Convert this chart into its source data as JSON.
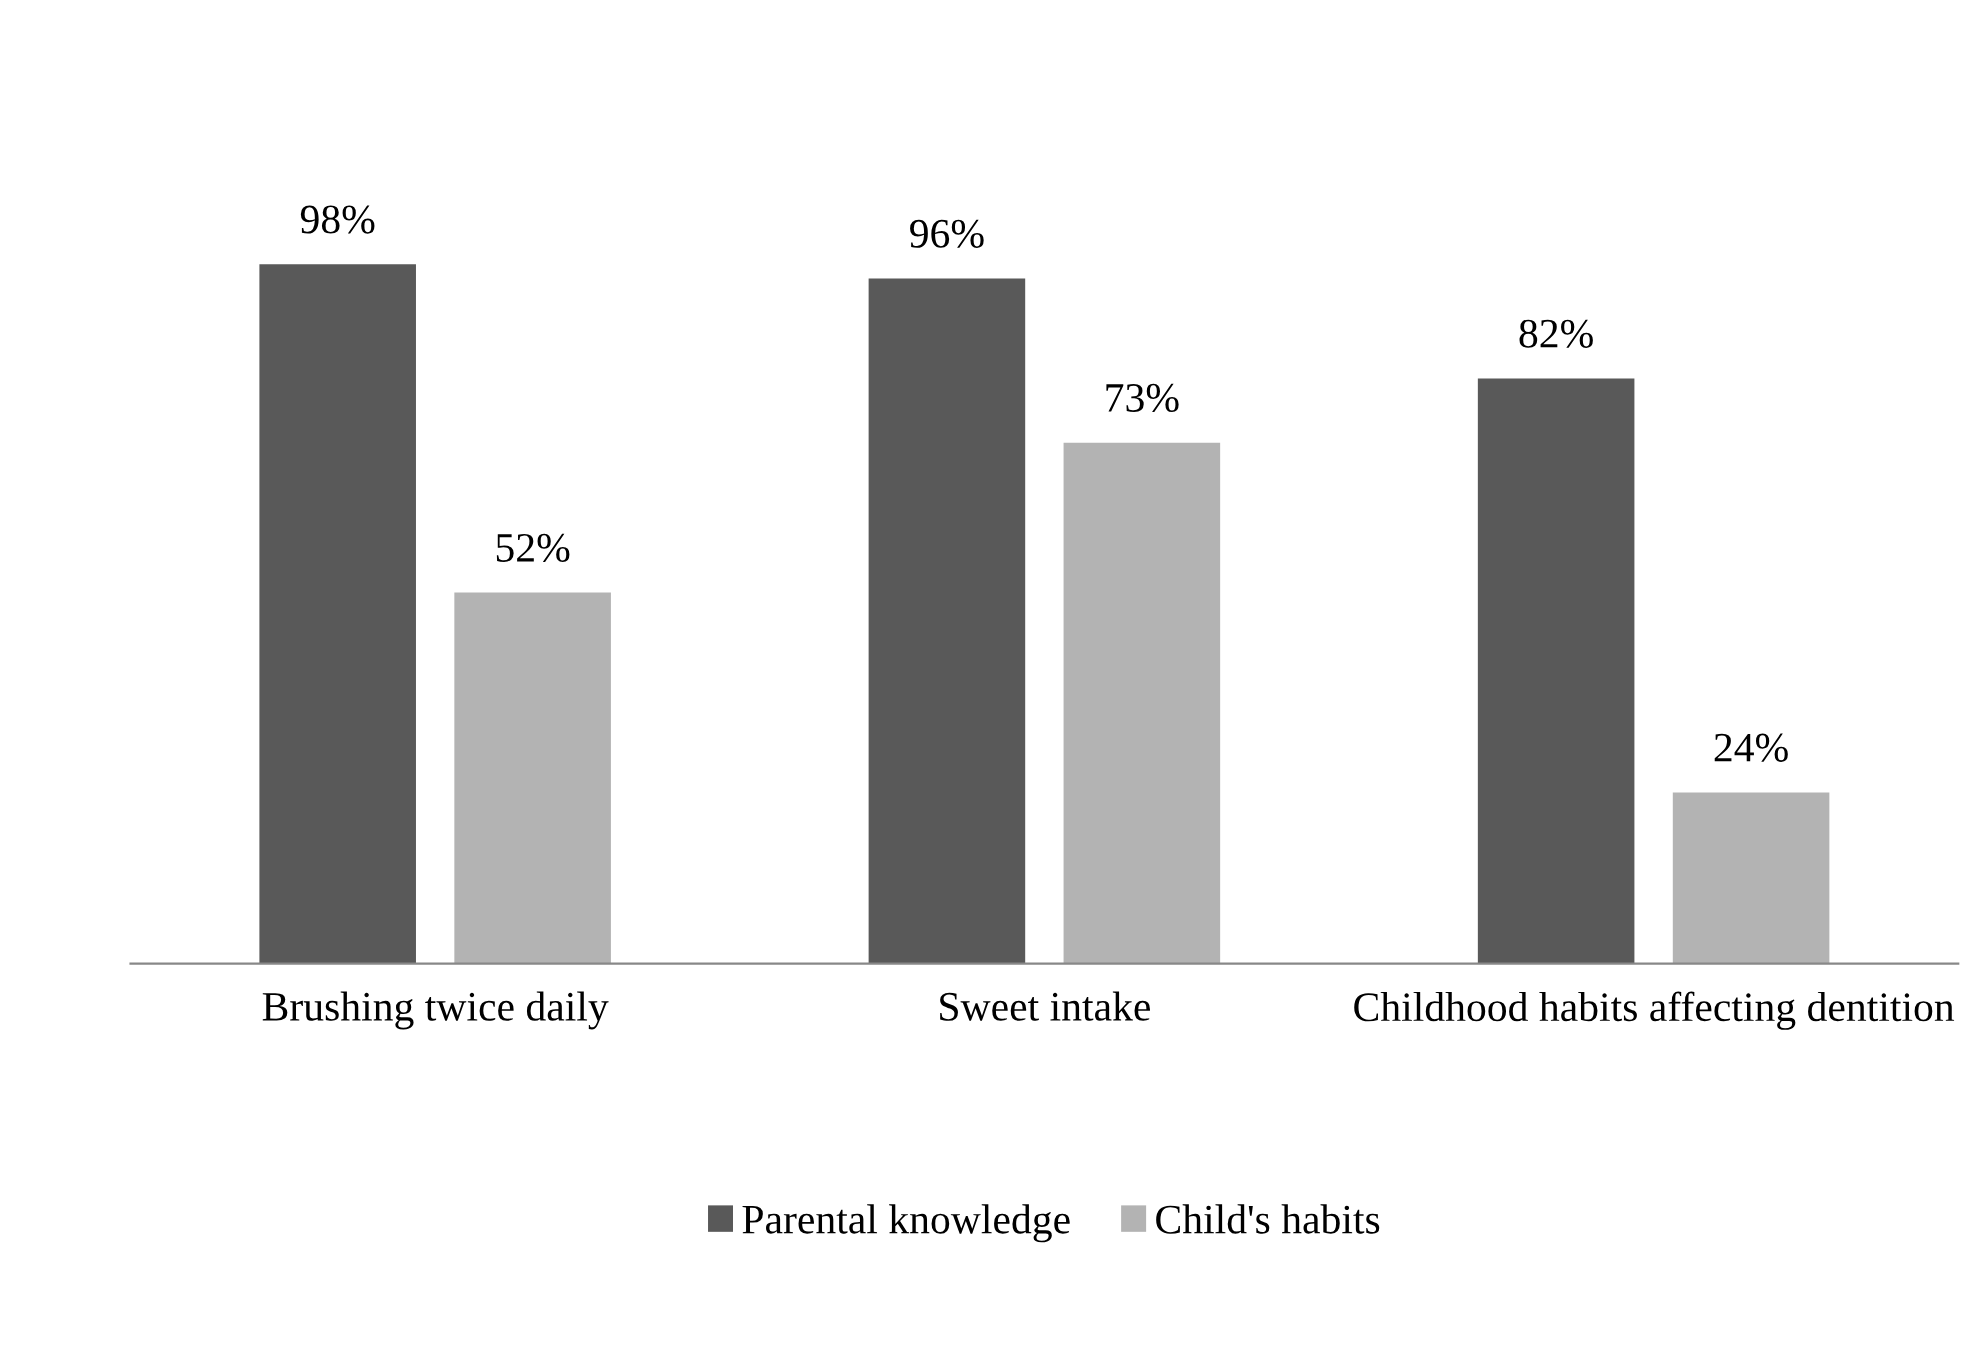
{
  "chart_data": {
    "type": "bar",
    "categories": [
      "Brushing twice daily",
      "Sweet intake",
      "Childhood habits affecting dentition"
    ],
    "series": [
      {
        "name": "Parental knowledge",
        "color": "#595959",
        "values": [
          98,
          96,
          82
        ],
        "value_labels": [
          "98%",
          "96%",
          "82%"
        ]
      },
      {
        "name": "Child's habits",
        "color": "#b3b3b3",
        "values": [
          52,
          73,
          24
        ],
        "value_labels": [
          "52%",
          "73%",
          "24%"
        ]
      }
    ],
    "legend": "bottom",
    "grid": false
  }
}
